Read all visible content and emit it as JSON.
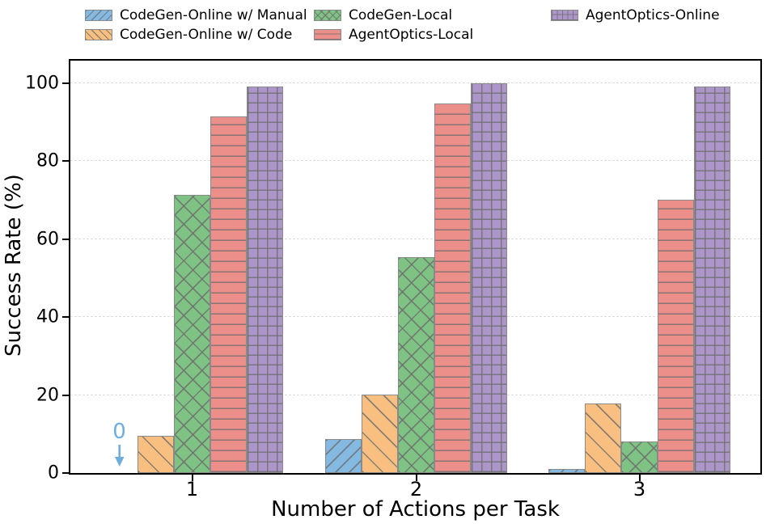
{
  "chart_data": {
    "type": "bar",
    "title": "",
    "xlabel": "Number of Actions per Task",
    "ylabel": "Success Rate (%)",
    "categories": [
      "1",
      "2",
      "3"
    ],
    "yticks": [
      0,
      20,
      40,
      60,
      80,
      100
    ],
    "ylim": [
      0,
      106
    ],
    "grid": "horizontal-dashed",
    "legend_position": "top-outside, 3 columns, 2 rows, column-major",
    "hatch_line_color": "#787878",
    "bar_edge_color": "#8a8a8a",
    "series": [
      {
        "name": "CodeGen-Online w/ Manual",
        "color": "#84b9e2",
        "hatch": "/",
        "values": [
          0,
          8.7,
          1.1
        ]
      },
      {
        "name": "CodeGen-Online w/ Code",
        "color": "#f8bf80",
        "hatch": "\\",
        "values": [
          9.5,
          20.1,
          17.9
        ]
      },
      {
        "name": "CodeGen-Local",
        "color": "#7ec383",
        "hatch": "x",
        "values": [
          71.2,
          55.4,
          8.0
        ]
      },
      {
        "name": "AgentOptics-Local",
        "color": "#ec8e89",
        "hatch": "-",
        "values": [
          91.4,
          94.7,
          70.1
        ]
      },
      {
        "name": "AgentOptics-Online",
        "color": "#ac95c8",
        "hatch": "+",
        "values": [
          99.0,
          100.0,
          99.1
        ]
      }
    ],
    "annotation": {
      "text": "0",
      "color": "#6faedc",
      "series_index": 0,
      "group_index": 0
    }
  }
}
